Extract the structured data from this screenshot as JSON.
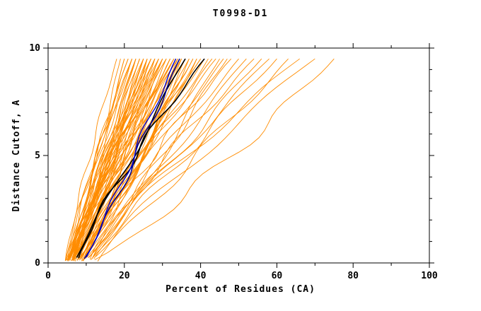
{
  "title": "T0998-D1",
  "chart_data": {
    "type": "line",
    "title": "T0998-D1",
    "xlabel": "Percent of Residues (CA)",
    "ylabel": "Distance Cutoff, A",
    "xlim": [
      0,
      100
    ],
    "ylim": [
      0,
      10
    ],
    "x_major_ticks": [
      0,
      20,
      40,
      60,
      80,
      100
    ],
    "x_minor_ticks": [
      10,
      30,
      50,
      70,
      90
    ],
    "y_major_ticks": [
      0,
      5,
      10
    ],
    "y_minor_ticks": [
      1,
      2,
      3,
      4,
      6,
      7,
      8,
      9
    ],
    "grid": false,
    "legend": "none",
    "background": "#ffffff",
    "axis_color": "#000000",
    "model_color": "#ff8c00",
    "curve_y_start": 0.2,
    "curve_y_end": 9.5,
    "orange_series": [
      [
        4.5,
        18
      ],
      [
        5,
        19
      ],
      [
        5.5,
        20
      ],
      [
        4.8,
        20
      ],
      [
        6,
        21
      ],
      [
        5.2,
        21
      ],
      [
        6.5,
        22
      ],
      [
        5.8,
        22
      ],
      [
        4.6,
        22
      ],
      [
        6.2,
        23
      ],
      [
        5.4,
        23
      ],
      [
        7,
        23
      ],
      [
        5.9,
        24
      ],
      [
        6.8,
        24
      ],
      [
        4.9,
        24
      ],
      [
        6.1,
        25
      ],
      [
        5.3,
        25
      ],
      [
        7.2,
        25
      ],
      [
        5.6,
        25
      ],
      [
        6.4,
        26
      ],
      [
        5.1,
        26
      ],
      [
        7.5,
        26
      ],
      [
        6.7,
        27
      ],
      [
        5.5,
        27
      ],
      [
        8,
        27
      ],
      [
        6,
        27
      ],
      [
        7.1,
        28
      ],
      [
        5.7,
        28
      ],
      [
        6.9,
        28
      ],
      [
        4.7,
        28
      ],
      [
        7.3,
        29
      ],
      [
        6.3,
        29
      ],
      [
        5.8,
        29
      ],
      [
        7.8,
        30
      ],
      [
        6.6,
        30
      ],
      [
        5.2,
        30
      ],
      [
        8.2,
        30
      ],
      [
        7,
        31
      ],
      [
        6.1,
        31
      ],
      [
        5.9,
        31
      ],
      [
        7.6,
        32
      ],
      [
        6.4,
        32
      ],
      [
        8.5,
        32
      ],
      [
        7.2,
        33
      ],
      [
        6.8,
        33
      ],
      [
        5.5,
        33
      ],
      [
        8,
        34
      ],
      [
        6.5,
        34
      ],
      [
        7.4,
        34
      ],
      [
        8.8,
        35
      ],
      [
        7.7,
        35
      ],
      [
        6.2,
        35
      ],
      [
        8.3,
        36
      ],
      [
        7.1,
        36
      ],
      [
        9,
        37
      ],
      [
        7.9,
        37
      ],
      [
        8.6,
        38
      ],
      [
        7.3,
        38
      ],
      [
        9.2,
        39
      ],
      [
        8.1,
        39
      ],
      [
        9.5,
        40
      ],
      [
        8.4,
        40
      ],
      [
        9.8,
        41
      ],
      [
        8.7,
        42
      ],
      [
        10,
        43
      ],
      [
        9.1,
        44
      ],
      [
        10.5,
        45
      ],
      [
        9.4,
        46
      ],
      [
        10.8,
        47
      ],
      [
        9.7,
        48
      ],
      [
        11,
        50
      ],
      [
        10.2,
        52
      ],
      [
        11.5,
        54
      ],
      [
        10.6,
        56
      ],
      [
        12,
        58
      ],
      [
        11.2,
        60
      ],
      [
        12.5,
        63
      ],
      [
        11.8,
        66
      ],
      [
        13,
        70
      ],
      [
        12.2,
        75
      ]
    ],
    "highlight_series": [
      {
        "color": "#000000",
        "width": 1.6,
        "x0": 7.5,
        "x1": 36
      },
      {
        "color": "#000000",
        "width": 1.6,
        "x0": 8,
        "x1": 41
      },
      {
        "color": "#00008b",
        "width": 1.6,
        "x0": 9.5,
        "x1": 34.5
      },
      {
        "color": "#0000cd",
        "width": 1.4,
        "x0": 10,
        "x1": 33.5
      }
    ]
  }
}
